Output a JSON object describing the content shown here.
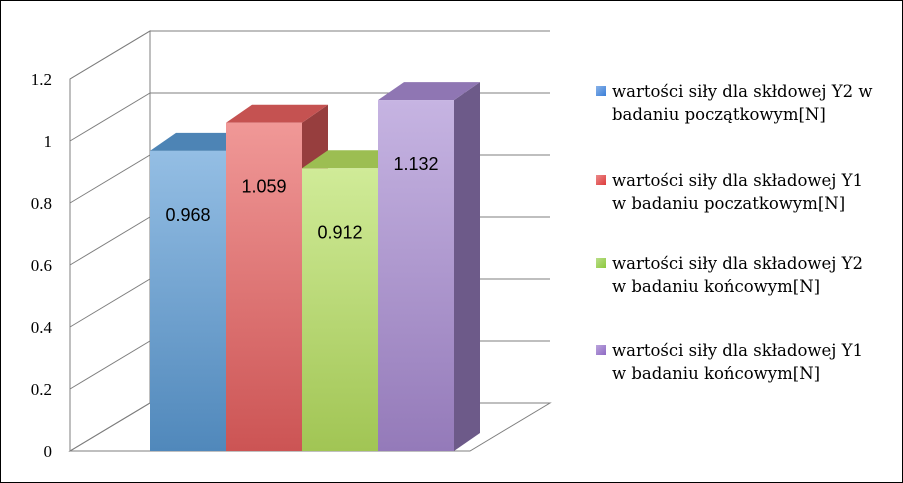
{
  "chart_data": {
    "type": "bar",
    "style": "3d-column",
    "categories": [
      ""
    ],
    "series": [
      {
        "name": "wartości siły dla skłdowej Y2 w badaniu początkowym[N]",
        "values": [
          0.968
        ],
        "data_label": "0.968",
        "color": "#5b9bd5",
        "legend_color": "#3a7fd8"
      },
      {
        "name": "wartości siły dla składowej Y1 w badaniu poczatkowym[N]",
        "values": [
          1.059
        ],
        "data_label": "1.059",
        "color": "#e8605f",
        "legend_color": "#dd3b3b"
      },
      {
        "name": "wartości siły dla składowej Y2 w badaniu końcowym[N]",
        "values": [
          0.912
        ],
        "data_label": "0.912",
        "color": "#b7e060",
        "legend_color": "#8cc83c"
      },
      {
        "name": "wartości siły dla składowej Y1 w badaniu końcowym[N]",
        "values": [
          1.132
        ],
        "data_label": "1.132",
        "color": "#a88bd2",
        "legend_color": "#8e69c4"
      }
    ],
    "y_ticks": [
      "0",
      "0.2",
      "0.4",
      "0.6",
      "0.8",
      "1",
      "1.2"
    ],
    "ylim": [
      0,
      1.2
    ],
    "grid": true,
    "legend_position": "right"
  }
}
